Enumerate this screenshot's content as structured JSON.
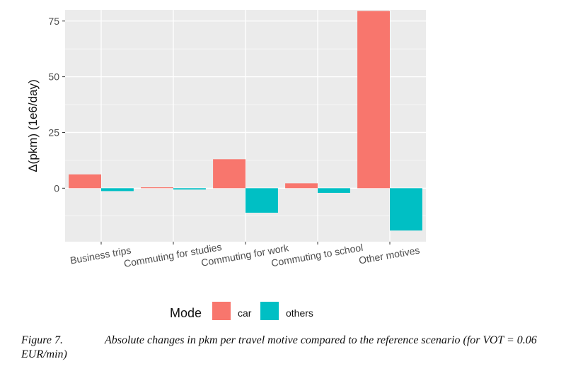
{
  "chart_data": {
    "type": "bar",
    "categories": [
      "Business trips",
      "Commuting for studies",
      "Commuting for work",
      "Commuting to school",
      "Other motives"
    ],
    "series": [
      {
        "name": "car",
        "color": "#F8766D",
        "values": [
          6.2,
          0.4,
          13.0,
          2.2,
          79.5
        ]
      },
      {
        "name": "others",
        "color": "#00BFC4",
        "values": [
          -1.3,
          -0.6,
          -11.0,
          -2.1,
          -19.0
        ]
      }
    ],
    "title": "",
    "xlabel": "",
    "ylabel": "Δ(pkm) (1e6/day)",
    "ylim": [
      -24,
      80
    ],
    "yticks": [
      0,
      25,
      50,
      75
    ],
    "grid": true,
    "legend": {
      "title": "Mode",
      "placement": "bottom"
    }
  },
  "caption": {
    "label": "Figure 7.",
    "text": "Absolute changes in pkm per travel motive compared to the reference scenario (for VOT = 0.06 EUR/min)"
  }
}
